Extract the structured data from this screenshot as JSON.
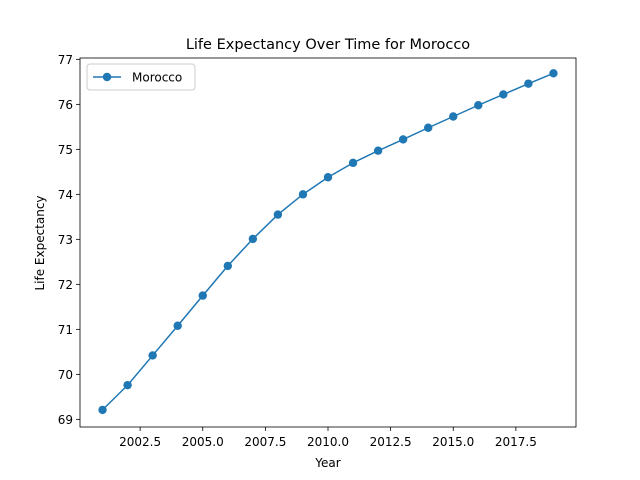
{
  "chart_data": {
    "type": "line",
    "title": "Life Expectancy Over Time for Morocco",
    "xlabel": "Year",
    "ylabel": "Life Expectancy",
    "xlim": [
      2000.1,
      2019.9
    ],
    "ylim": [
      68.83,
      77.03
    ],
    "grid": false,
    "legend_position": "top-left",
    "x_ticks": [
      2002.5,
      2005.0,
      2007.5,
      2010.0,
      2012.5,
      2015.0,
      2017.5
    ],
    "x_tick_labels": [
      "2002.5",
      "2005.0",
      "2007.5",
      "2010.0",
      "2012.5",
      "2015.0",
      "2017.5"
    ],
    "y_ticks": [
      69,
      70,
      71,
      72,
      73,
      74,
      75,
      76,
      77
    ],
    "y_tick_labels": [
      "69",
      "70",
      "71",
      "72",
      "73",
      "74",
      "75",
      "76",
      "77"
    ],
    "x": [
      2001,
      2002,
      2003,
      2004,
      2005,
      2006,
      2007,
      2008,
      2009,
      2010,
      2011,
      2012,
      2013,
      2014,
      2015,
      2016,
      2017,
      2018,
      2019
    ],
    "series": [
      {
        "name": "Morocco",
        "color": "#1f77b4",
        "values": [
          69.21,
          69.76,
          70.42,
          71.08,
          71.75,
          72.41,
          73.01,
          73.55,
          74.0,
          74.38,
          74.7,
          74.97,
          75.22,
          75.48,
          75.73,
          75.98,
          76.22,
          76.46,
          76.69
        ]
      }
    ]
  }
}
